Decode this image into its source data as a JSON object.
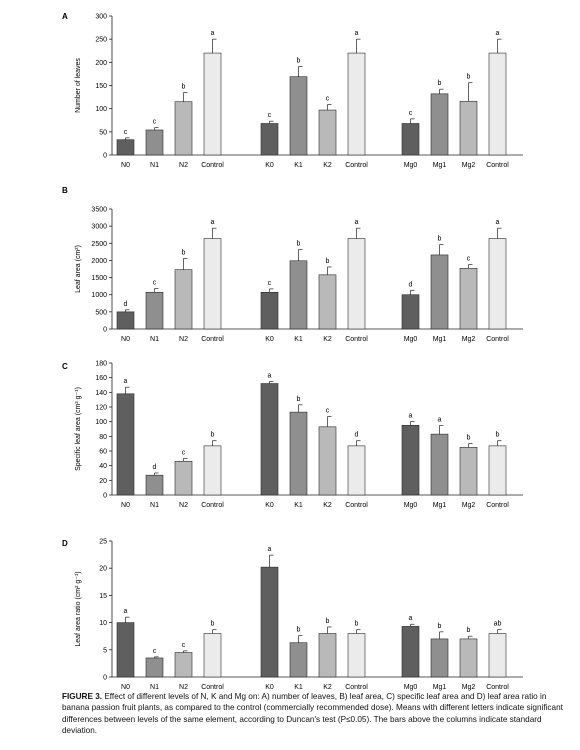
{
  "caption": {
    "label": "FIGURE 3.",
    "text": "Effect of different levels of N, K and Mg on: A) number of leaves, B) leaf area, C) specific leaf area and D) leaf area ratio in banana passion fruit plants, as compared to the control (commercially recommended dose). Means with different letters indicate significant differences between levels of the same element, according to Duncan's test (P≤0.05). The bars above the columns indicate standard deviation."
  },
  "colors": {
    "level0": "#5f5f5f",
    "level1": "#8f8f8f",
    "level2": "#b9b9b9",
    "control": "#ebebeb",
    "stroke": "#2a2a2a"
  },
  "chart_data": [
    {
      "panel": "A",
      "type": "bar",
      "ylabel": "Number of leaves",
      "ylim": [
        0,
        300
      ],
      "yticks": [
        0,
        50,
        100,
        150,
        200,
        250,
        300
      ],
      "groups": [
        {
          "categories": [
            "N0",
            "N1",
            "N2",
            "Control"
          ],
          "values": [
            33,
            54,
            115,
            220
          ],
          "errors": [
            4,
            5,
            20,
            30
          ],
          "letters": [
            "c",
            "c",
            "b",
            "a"
          ]
        },
        {
          "categories": [
            "K0",
            "K1",
            "K2",
            "Control"
          ],
          "values": [
            68,
            169,
            97,
            220
          ],
          "errors": [
            5,
            22,
            12,
            30
          ],
          "letters": [
            "c",
            "b",
            "c",
            "a"
          ]
        },
        {
          "categories": [
            "Mg0",
            "Mg1",
            "Mg2",
            "Control"
          ],
          "values": [
            68,
            132,
            116,
            220
          ],
          "errors": [
            10,
            10,
            40,
            30
          ],
          "letters": [
            "c",
            "b",
            "b",
            "a"
          ]
        }
      ]
    },
    {
      "panel": "B",
      "type": "bar",
      "ylabel": "Leaf area (cm²)",
      "ylim": [
        0,
        3500
      ],
      "yticks": [
        0,
        500,
        1000,
        1500,
        2000,
        2500,
        3000,
        3500
      ],
      "groups": [
        {
          "categories": [
            "N0",
            "N1",
            "N2",
            "Control"
          ],
          "values": [
            500,
            1070,
            1730,
            2640
          ],
          "errors": [
            60,
            110,
            330,
            300
          ],
          "letters": [
            "d",
            "c",
            "b",
            "a"
          ]
        },
        {
          "categories": [
            "K0",
            "K1",
            "K2",
            "Control"
          ],
          "values": [
            1070,
            1990,
            1580,
            2640
          ],
          "errors": [
            100,
            330,
            230,
            300
          ],
          "letters": [
            "c",
            "b",
            "b",
            "a"
          ]
        },
        {
          "categories": [
            "Mg0",
            "Mg1",
            "Mg2",
            "Control"
          ],
          "values": [
            1000,
            2160,
            1770,
            2640
          ],
          "errors": [
            130,
            300,
            110,
            300
          ],
          "letters": [
            "d",
            "b",
            "c",
            "a"
          ]
        }
      ]
    },
    {
      "panel": "C",
      "type": "bar",
      "ylabel": "Specific leaf area (cm² g⁻¹)",
      "ylim": [
        0,
        180
      ],
      "yticks": [
        0,
        20,
        40,
        60,
        80,
        100,
        120,
        140,
        160,
        180
      ],
      "groups": [
        {
          "categories": [
            "N0",
            "N1",
            "N2",
            "Control"
          ],
          "values": [
            138,
            27,
            46,
            67
          ],
          "errors": [
            9,
            3,
            4,
            7
          ],
          "letters": [
            "a",
            "d",
            "c",
            "b"
          ]
        },
        {
          "categories": [
            "K0",
            "K1",
            "K2",
            "Control"
          ],
          "values": [
            152,
            113,
            93,
            67
          ],
          "errors": [
            3,
            10,
            14,
            7
          ],
          "letters": [
            "a",
            "b",
            "c",
            "d"
          ]
        },
        {
          "categories": [
            "Mg0",
            "Mg1",
            "Mg2",
            "Control"
          ],
          "values": [
            95,
            83,
            65,
            67
          ],
          "errors": [
            5,
            12,
            5,
            7
          ],
          "letters": [
            "a",
            "a",
            "b",
            "b"
          ]
        }
      ]
    },
    {
      "panel": "D",
      "type": "bar",
      "ylabel": "Leaf area ratio (cm² g⁻¹)",
      "ylim": [
        0,
        25
      ],
      "yticks": [
        0,
        5,
        10,
        15,
        20,
        25
      ],
      "groups": [
        {
          "categories": [
            "N0",
            "N1",
            "N2",
            "Control"
          ],
          "values": [
            10,
            3.5,
            4.5,
            8
          ],
          "errors": [
            1,
            0.2,
            0.3,
            0.7
          ],
          "letters": [
            "a",
            "c",
            "c",
            "b"
          ]
        },
        {
          "categories": [
            "K0",
            "K1",
            "K2",
            "Control"
          ],
          "values": [
            20.2,
            6.3,
            8,
            8
          ],
          "errors": [
            2.2,
            1.3,
            1.2,
            0.7
          ],
          "letters": [
            "a",
            "b",
            "b",
            "b"
          ]
        },
        {
          "categories": [
            "Mg0",
            "Mg1",
            "Mg2",
            "Control"
          ],
          "values": [
            9.3,
            7,
            7,
            8
          ],
          "errors": [
            0.4,
            1.3,
            0.5,
            0.7
          ],
          "letters": [
            "a",
            "b",
            "b",
            "ab"
          ]
        }
      ]
    }
  ]
}
